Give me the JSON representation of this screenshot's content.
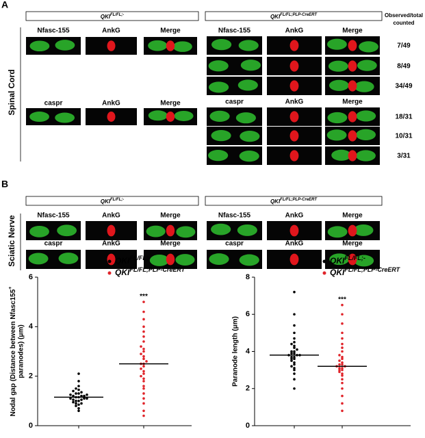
{
  "panel_a": {
    "label": "A",
    "side_label": "Spinal Cord",
    "control": {
      "gene": "QKI",
      "allele": "FL/FL;-"
    },
    "mutant": {
      "gene": "QKI",
      "allele": "FL/FL;PLP-CreERT"
    },
    "count_header": [
      "Observed/total",
      "counted"
    ],
    "control_rows": [
      [
        "Nfasc-155",
        "AnkG",
        "Merge"
      ],
      [
        "caspr",
        "AnkG",
        "Merge"
      ]
    ],
    "mutant_rows": [
      [
        "Nfasc-155",
        "AnkG",
        "Merge"
      ],
      [
        "caspr",
        "AnkG",
        "Merge"
      ]
    ],
    "counts": [
      "7/49",
      "8/49",
      "34/49",
      "18/31",
      "10/31",
      "3/31"
    ]
  },
  "panel_b": {
    "label": "B",
    "side_label": "Sciatic Nerve",
    "control": {
      "gene": "QKI",
      "allele": "FL/FL;-"
    },
    "mutant": {
      "gene": "QKI",
      "allele": "FL/FL;PLP-CreERT"
    },
    "control_rows": [
      [
        "Nfasc-155",
        "AnkG",
        "Merge"
      ],
      [
        "caspr",
        "AnkG",
        "Merge"
      ]
    ],
    "mutant_rows": [
      [
        "Nfasc-155",
        "AnkG",
        "Merge"
      ],
      [
        "caspr",
        "AnkG",
        "Merge"
      ]
    ]
  },
  "chart_data": [
    {
      "type": "dot",
      "y_label": [
        "Nodal gap (Distance between Nfasc155",
        "+",
        "paranodes) (μm)"
      ],
      "ylim": [
        0,
        6
      ],
      "yticks": [
        0,
        2,
        4,
        6
      ],
      "annotation": "***",
      "series": [
        {
          "name": "QKI",
          "sup": "FL/FL;-",
          "color": "#000000",
          "mean": 1.15,
          "values": [
            0.6,
            0.7,
            0.8,
            0.85,
            0.9,
            0.9,
            0.95,
            1.0,
            1.0,
            1.05,
            1.05,
            1.1,
            1.1,
            1.1,
            1.15,
            1.15,
            1.2,
            1.2,
            1.2,
            1.25,
            1.25,
            1.3,
            1.3,
            1.35,
            1.4,
            1.45,
            1.5,
            1.6,
            1.8,
            2.1
          ]
        },
        {
          "name": "QKI",
          "sup": "FL/FL;PLP-CreERT",
          "color": "#e0242a",
          "mean": 2.5,
          "values": [
            0.4,
            0.6,
            0.9,
            1.1,
            1.3,
            1.5,
            1.6,
            1.8,
            1.9,
            2.0,
            2.1,
            2.2,
            2.3,
            2.4,
            2.5,
            2.5,
            2.6,
            2.7,
            2.8,
            2.9,
            3.0,
            3.1,
            3.2,
            3.4,
            3.6,
            3.8,
            4.0,
            4.3,
            4.6,
            5.0
          ]
        }
      ]
    },
    {
      "type": "dot",
      "y_label": [
        "Paranode length (μm)"
      ],
      "ylim": [
        0,
        8
      ],
      "yticks": [
        0,
        2,
        4,
        6,
        8
      ],
      "annotation": "***",
      "series": [
        {
          "name": "QKI",
          "sup": "FL/FL;-",
          "color": "#000000",
          "mean": 3.8,
          "values": [
            2.0,
            2.5,
            2.8,
            3.0,
            3.1,
            3.2,
            3.3,
            3.4,
            3.5,
            3.6,
            3.6,
            3.7,
            3.7,
            3.8,
            3.8,
            3.8,
            3.9,
            3.9,
            4.0,
            4.0,
            4.1,
            4.2,
            4.3,
            4.4,
            4.5,
            4.7,
            5.0,
            5.4,
            6.0,
            7.2
          ]
        },
        {
          "name": "QKI",
          "sup": "FL/FL;PLP-CreERT",
          "color": "#e0242a",
          "mean": 3.2,
          "values": [
            0.8,
            1.2,
            1.6,
            2.0,
            2.3,
            2.5,
            2.7,
            2.8,
            2.9,
            3.0,
            3.0,
            3.1,
            3.1,
            3.2,
            3.2,
            3.3,
            3.3,
            3.4,
            3.5,
            3.6,
            3.7,
            3.8,
            4.0,
            4.2,
            4.4,
            4.7,
            5.0,
            5.5,
            6.0,
            6.5
          ]
        }
      ]
    }
  ]
}
